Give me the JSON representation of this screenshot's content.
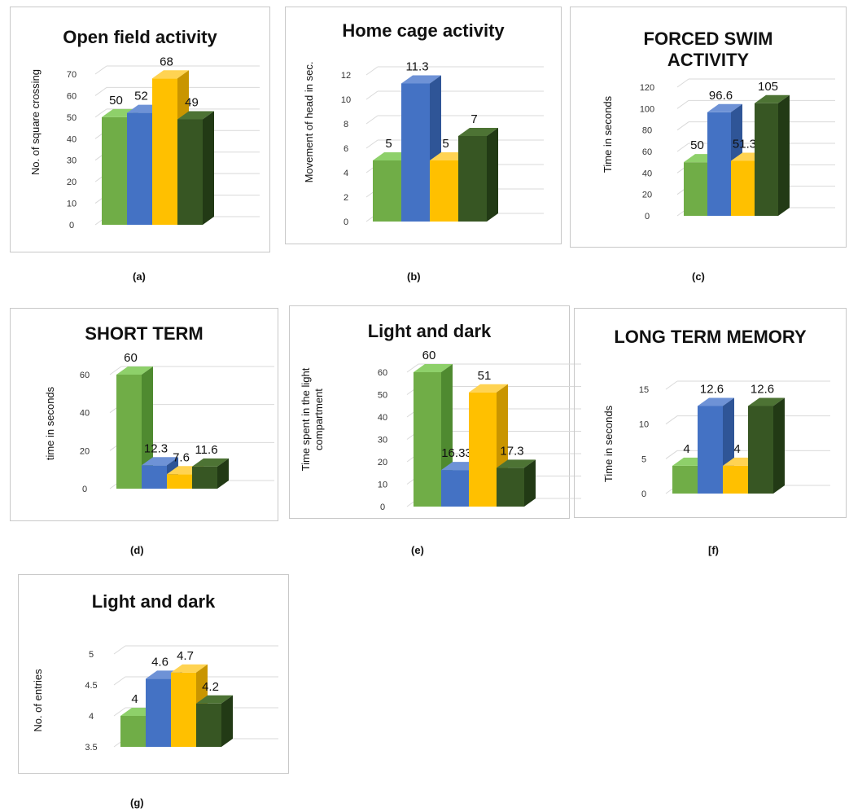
{
  "colors": {
    "green": "#70ad47",
    "blue": "#4472c4",
    "gold": "#ffc000",
    "darkgreen": "#375623"
  },
  "chart_data": [
    {
      "type": "bar",
      "title": "Open field activity",
      "ylabel": "No. of square crossing",
      "panel_label": "(a)",
      "ylim": [
        0,
        70
      ],
      "yticks": [
        0,
        10,
        20,
        30,
        40,
        50,
        60,
        70
      ],
      "values": [
        50,
        52,
        68,
        49
      ],
      "value_labels": [
        "50",
        "52",
        "68",
        "49"
      ]
    },
    {
      "type": "bar",
      "title": "Home cage activity",
      "ylabel": "Movement of head in sec.",
      "panel_label": "(b)",
      "ylim": [
        0,
        12
      ],
      "yticks": [
        0,
        2,
        4,
        6,
        8,
        10,
        12
      ],
      "values": [
        5,
        11.3,
        5,
        7
      ],
      "value_labels": [
        "5",
        "11.3",
        "5",
        "7"
      ]
    },
    {
      "type": "bar",
      "title": "FORCED SWIM\nACTIVITY",
      "ylabel": "Time in seconds",
      "panel_label": "(c)",
      "ylim": [
        0,
        120
      ],
      "yticks": [
        0,
        20,
        40,
        60,
        80,
        100,
        120
      ],
      "values": [
        50,
        96.6,
        51.3,
        105
      ],
      "value_labels": [
        "50",
        "96.6",
        "51.3",
        "105"
      ]
    },
    {
      "type": "bar",
      "title": "SHORT TERM",
      "ylabel": "time in seconds",
      "panel_label": "(d)",
      "ylim": [
        0,
        60
      ],
      "yticks": [
        0,
        20,
        40,
        60
      ],
      "values": [
        60,
        12.3,
        7.6,
        11.6
      ],
      "value_labels": [
        "60",
        "12.3",
        "7.6",
        "11.6"
      ]
    },
    {
      "type": "bar",
      "title": "Light and dark",
      "ylabel": "Time spent in the light\ncompartment",
      "panel_label": "(e)",
      "ylim": [
        0,
        60
      ],
      "yticks": [
        0,
        10,
        20,
        30,
        40,
        50,
        60
      ],
      "values": [
        60,
        16.33,
        51,
        17.3
      ],
      "value_labels": [
        "60",
        "16.33",
        "51",
        "17.3"
      ]
    },
    {
      "type": "bar",
      "title": "LONG TERM MEMORY",
      "ylabel": "Time in seconds",
      "panel_label": "[f)",
      "ylim": [
        0,
        15
      ],
      "yticks": [
        0,
        5,
        10,
        15
      ],
      "values": [
        4,
        12.6,
        4,
        12.6
      ],
      "value_labels": [
        "4",
        "12.6",
        "4",
        "12.6"
      ]
    },
    {
      "type": "bar",
      "title": "Light and dark",
      "ylabel": "No. of entries",
      "panel_label": "(g)",
      "ylim": [
        3.5,
        5
      ],
      "yticks": [
        3.5,
        4,
        4.5,
        5
      ],
      "values": [
        4,
        4.6,
        4.7,
        4.2
      ],
      "value_labels": [
        "4",
        "4.6",
        "4.7",
        "4.2"
      ]
    }
  ]
}
